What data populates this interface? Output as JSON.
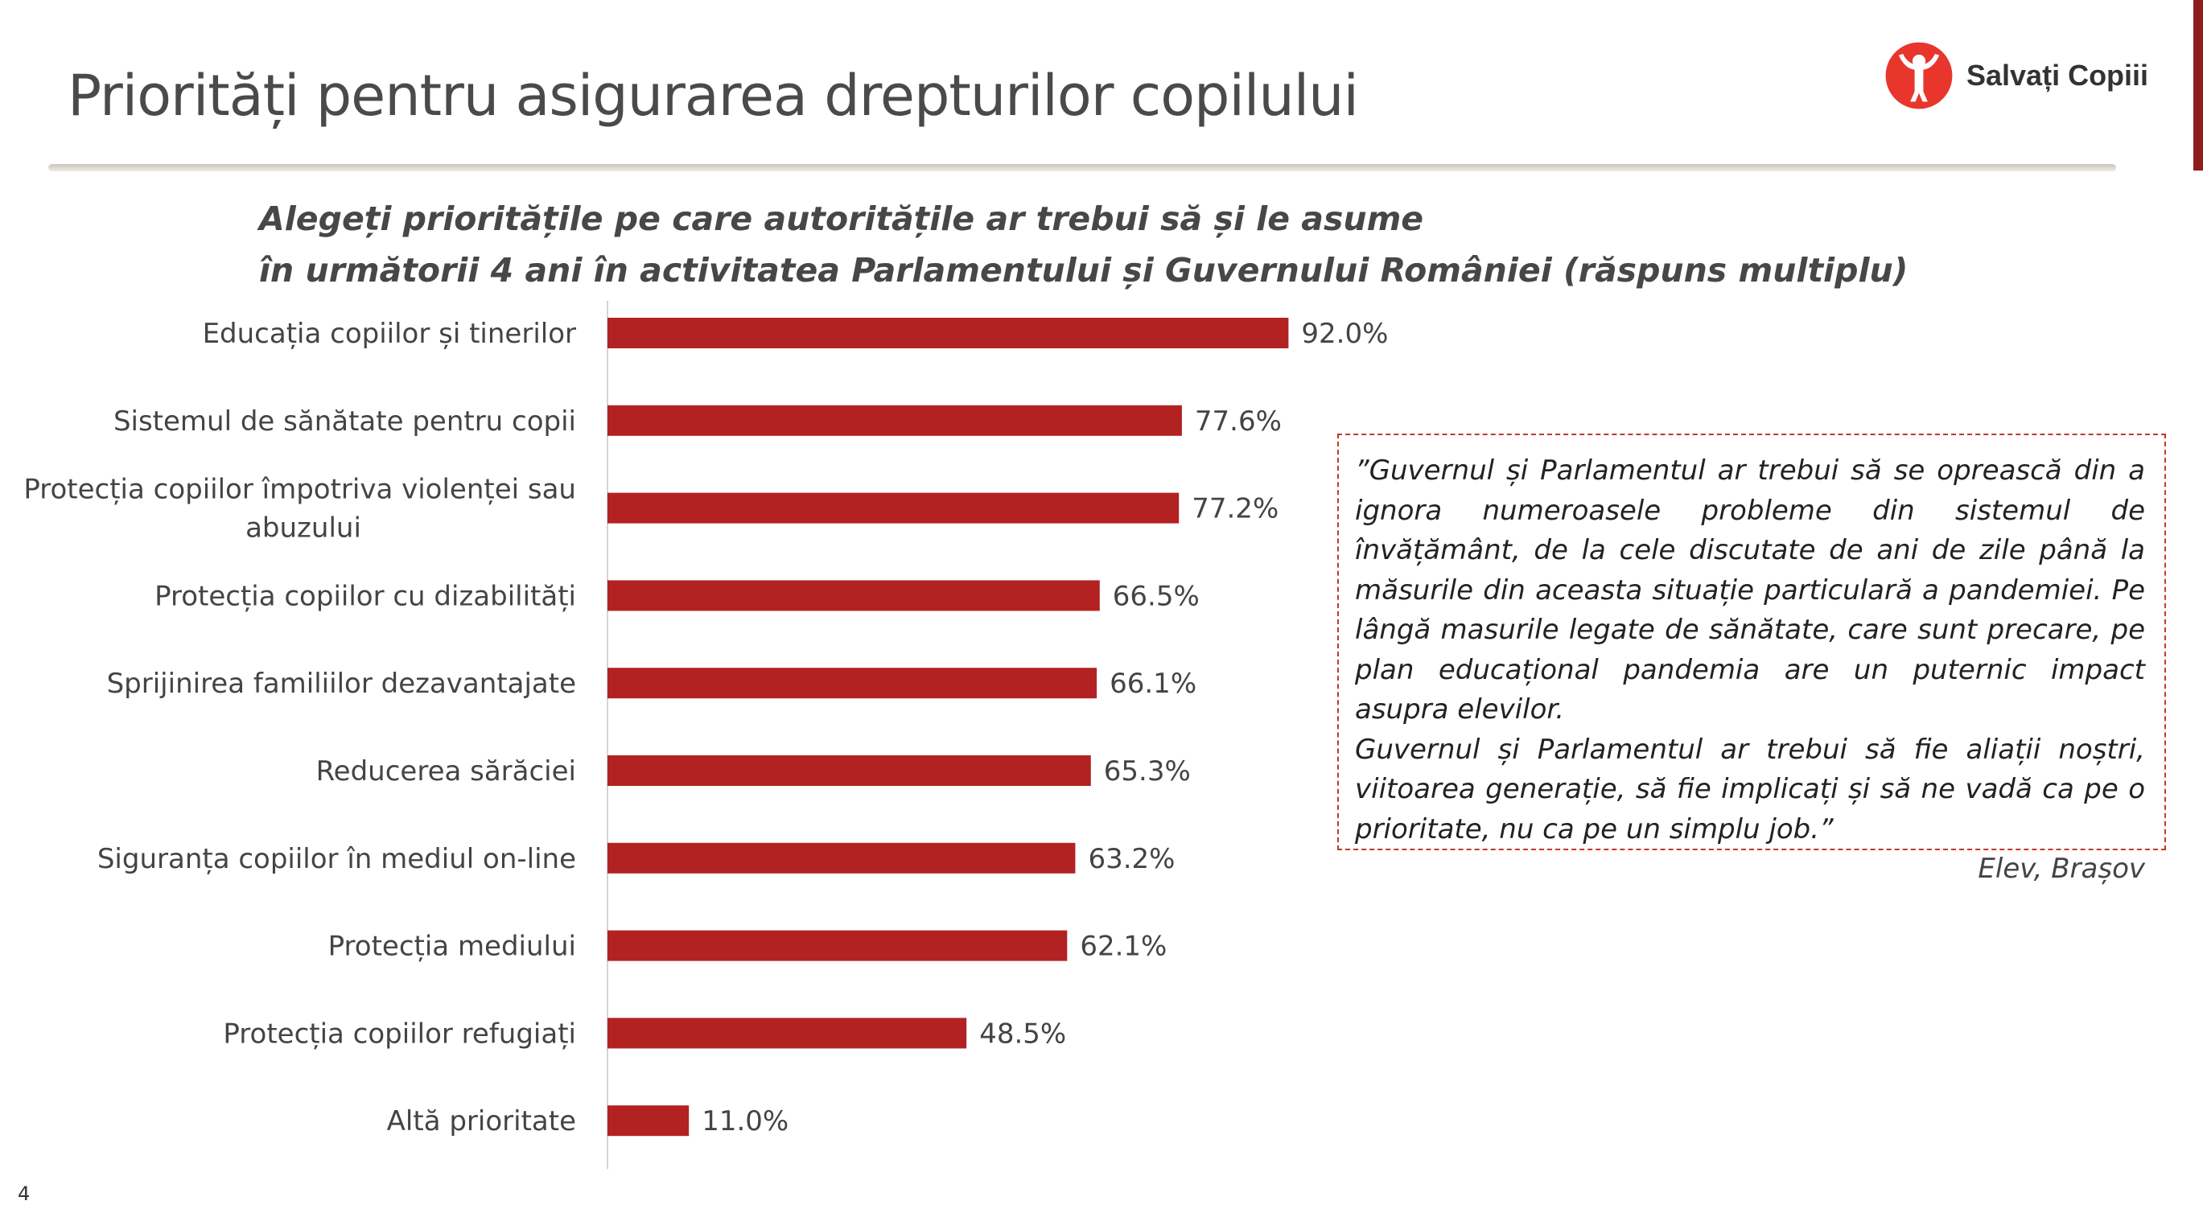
{
  "slide": {
    "title": "Priorități pentru asigurarea drepturilor copilului",
    "page_number": "4",
    "logo_text": "Salvați Copiii",
    "colors": {
      "accent": "#b22222",
      "stripe": "#8c1e1e",
      "logo": "#e8362d"
    }
  },
  "chart_data": {
    "type": "bar",
    "orientation": "horizontal",
    "title_line1": "Alegeți prioritățile pe care autoritățile ar trebui să și le asume",
    "title_line2": "în următorii 4 ani în activitatea Parlamentului și Guvernului României  (răspuns multiplu)",
    "categories": [
      [
        "Educația copiilor și tinerilor"
      ],
      [
        "Sistemul de sănătate pentru copii"
      ],
      [
        "Protecția copiilor împotriva violenței sau",
        "abuzului"
      ],
      [
        "Protecția copiilor cu dizabilități"
      ],
      [
        "Sprijinirea familiilor dezavantajate"
      ],
      [
        "Reducerea sărăciei"
      ],
      [
        "Siguranța copiilor în mediul on-line"
      ],
      [
        "Protecția mediului"
      ],
      [
        "Protecția copiilor refugiați"
      ],
      [
        "Altă prioritate"
      ]
    ],
    "values": [
      92.0,
      77.6,
      77.2,
      66.5,
      66.1,
      65.3,
      63.2,
      62.1,
      48.5,
      11.0
    ],
    "value_labels": [
      "92.0%",
      "77.6%",
      "77.2%",
      "66.5%",
      "66.1%",
      "65.3%",
      "63.2%",
      "62.1%",
      "48.5%",
      "11.0%"
    ],
    "xlim": [
      0,
      100
    ],
    "grid": false,
    "bar_color": "#b22222"
  },
  "quote": {
    "text": "”Guvernul și Parlamentul ar trebui să se oprească din a ignora numeroasele probleme din sistemul de învățământ, de la cele discutate de ani de zile până la măsurile din aceasta situație particulară a pandemiei. Pe lângă masurile legate de sănătate, care sunt precare, pe plan educațional pandemia are un puternic impact asupra elevilor.",
    "text2": "Guvernul și Parlamentul ar trebui să fie aliații noștri, viitoarea generație, să fie implicați și să ne vadă ca pe o prioritate, nu ca pe un simplu job.”",
    "author": "Elev, Brașov"
  }
}
